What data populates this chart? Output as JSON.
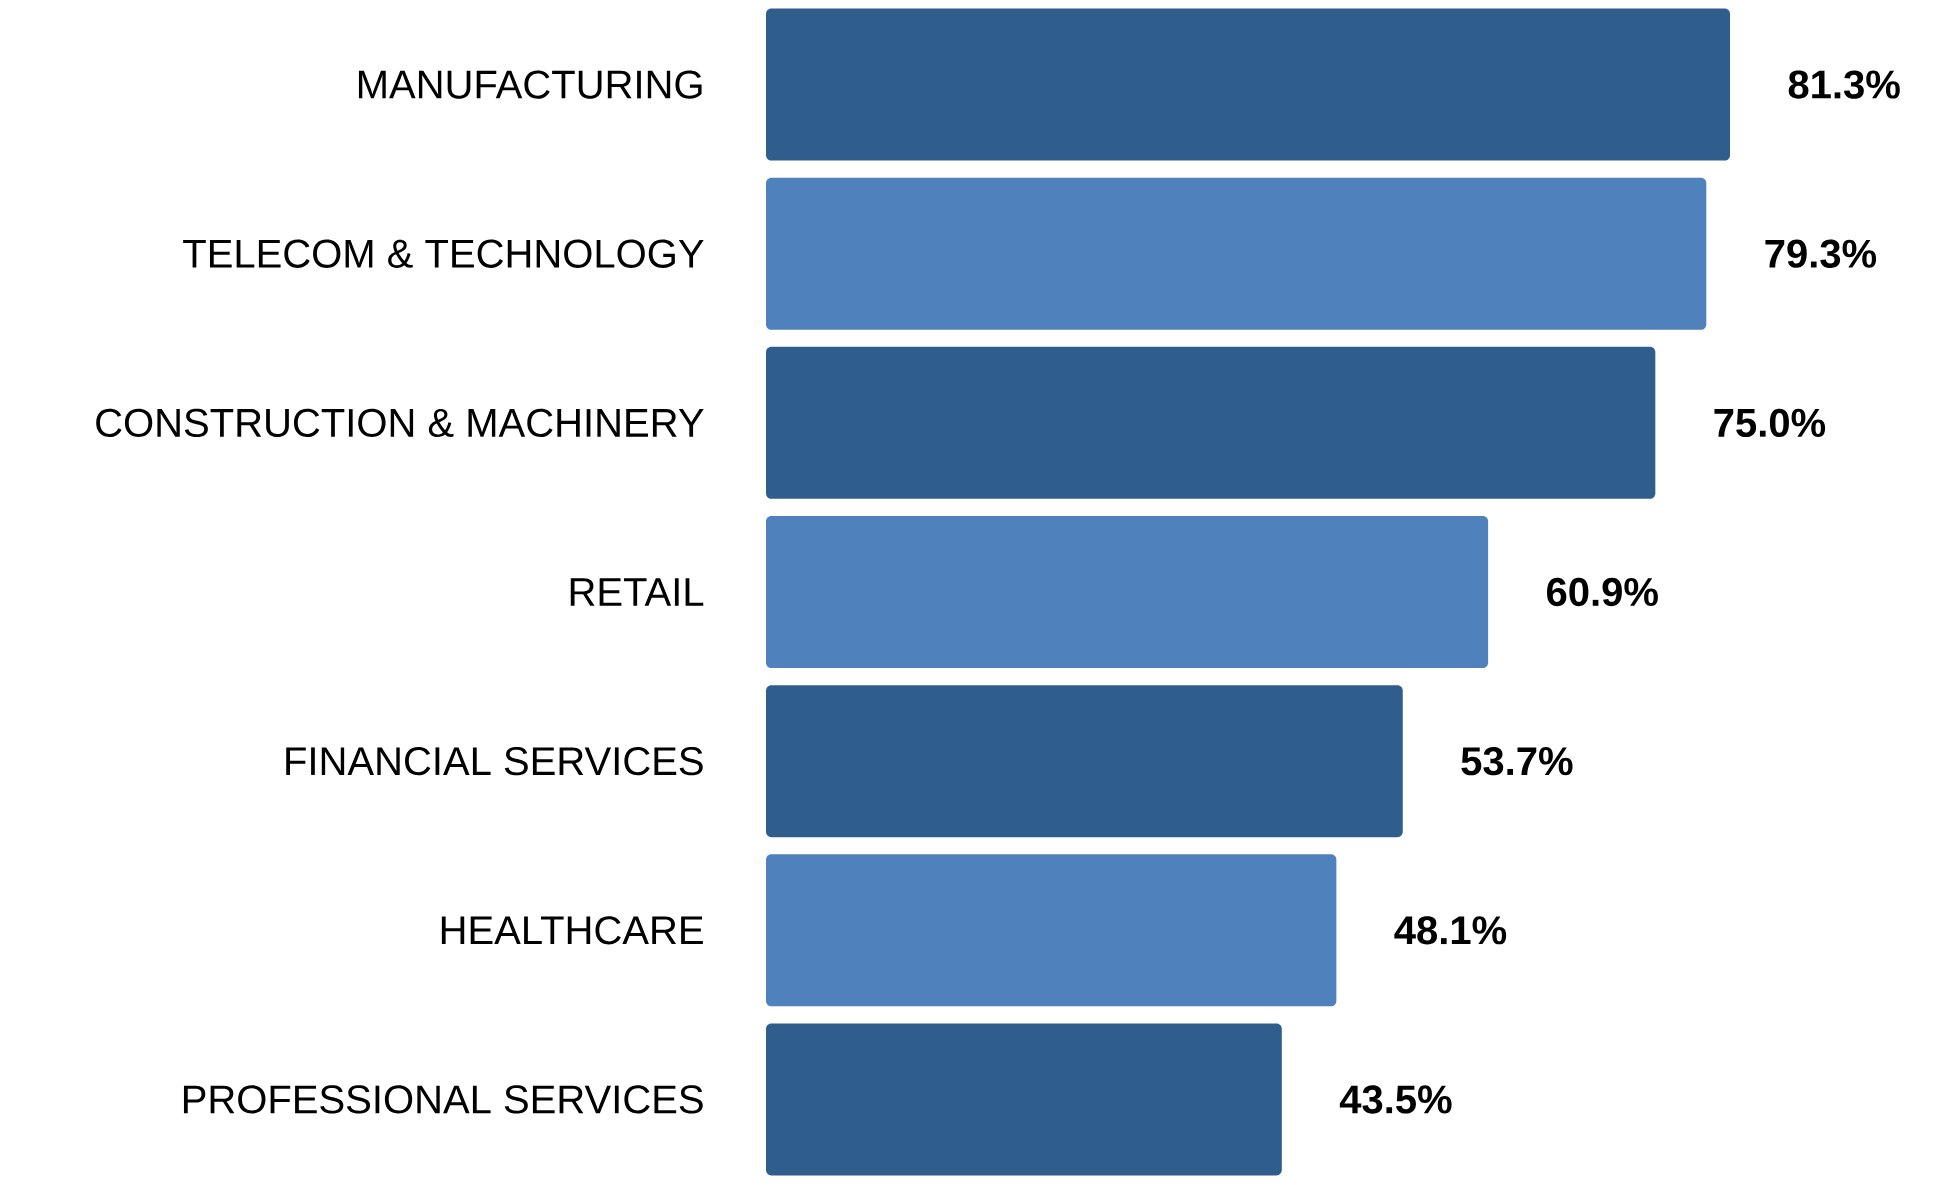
{
  "chart_data": {
    "type": "bar",
    "orientation": "horizontal",
    "categories": [
      "MANUFACTURING",
      "TELECOM & TECHNOLOGY",
      "CONSTRUCTION & MACHINERY",
      "RETAIL",
      "FINANCIAL SERVICES",
      "HEALTHCARE",
      "PROFESSIONAL SERVICES"
    ],
    "values": [
      81.3,
      79.3,
      75.0,
      60.9,
      53.7,
      48.1,
      43.5
    ],
    "value_labels": [
      "81.3%",
      "79.3%",
      "75.0%",
      "60.9%",
      "53.7%",
      "48.1%",
      "43.5%"
    ],
    "colors": [
      "#2f5d8c",
      "#4f81bd",
      "#2f5d8c",
      "#4f81bd",
      "#2f5d8c",
      "#4f81bd",
      "#2f5d8c"
    ]
  }
}
